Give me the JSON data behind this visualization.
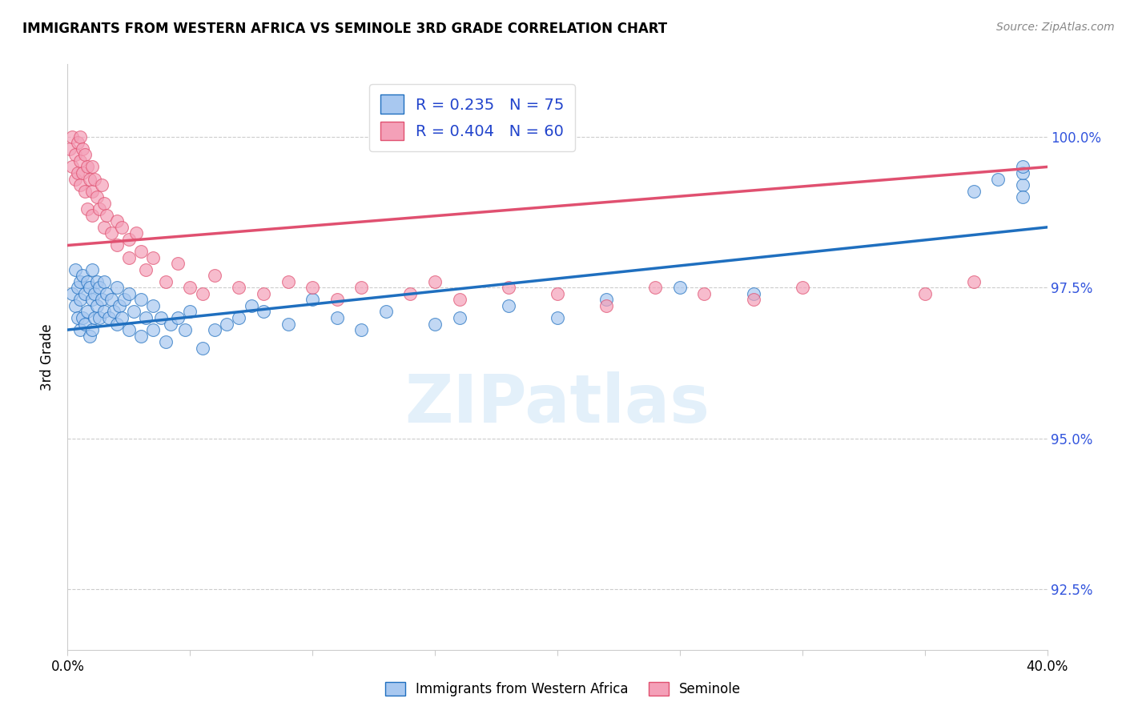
{
  "title": "IMMIGRANTS FROM WESTERN AFRICA VS SEMINOLE 3RD GRADE CORRELATION CHART",
  "source": "Source: ZipAtlas.com",
  "ylabel": "3rd Grade",
  "y_ticks": [
    92.5,
    95.0,
    97.5,
    100.0
  ],
  "y_tick_labels": [
    "92.5%",
    "95.0%",
    "97.5%",
    "100.0%"
  ],
  "xlim": [
    0.0,
    0.4
  ],
  "ylim": [
    91.5,
    101.2
  ],
  "legend_blue_label": "R = 0.235   N = 75",
  "legend_pink_label": "R = 0.404   N = 60",
  "blue_color": "#A8C8F0",
  "pink_color": "#F4A0B8",
  "trendline_blue": "#1F6FBF",
  "trendline_pink": "#E05070",
  "legend_label1": "Immigrants from Western Africa",
  "legend_label2": "Seminole",
  "blue_trendline_x": [
    0.0,
    0.4
  ],
  "blue_trendline_y": [
    96.8,
    98.5
  ],
  "pink_trendline_x": [
    0.0,
    0.4
  ],
  "pink_trendline_y": [
    98.2,
    99.5
  ],
  "blue_scatter_x": [
    0.002,
    0.003,
    0.003,
    0.004,
    0.004,
    0.005,
    0.005,
    0.005,
    0.006,
    0.006,
    0.007,
    0.007,
    0.008,
    0.008,
    0.009,
    0.009,
    0.01,
    0.01,
    0.01,
    0.011,
    0.011,
    0.012,
    0.012,
    0.013,
    0.013,
    0.014,
    0.015,
    0.015,
    0.016,
    0.017,
    0.018,
    0.019,
    0.02,
    0.02,
    0.021,
    0.022,
    0.023,
    0.025,
    0.025,
    0.027,
    0.03,
    0.03,
    0.032,
    0.035,
    0.035,
    0.038,
    0.04,
    0.042,
    0.045,
    0.048,
    0.05,
    0.055,
    0.06,
    0.065,
    0.07,
    0.075,
    0.08,
    0.09,
    0.1,
    0.11,
    0.12,
    0.13,
    0.15,
    0.16,
    0.18,
    0.2,
    0.22,
    0.25,
    0.28,
    0.37,
    0.38,
    0.39,
    0.39,
    0.39,
    0.39
  ],
  "blue_scatter_y": [
    97.4,
    97.2,
    97.8,
    97.5,
    97.0,
    97.6,
    97.3,
    96.8,
    97.7,
    97.0,
    97.4,
    96.9,
    97.6,
    97.1,
    97.5,
    96.7,
    97.8,
    97.3,
    96.8,
    97.4,
    97.0,
    97.6,
    97.2,
    97.5,
    97.0,
    97.3,
    97.6,
    97.1,
    97.4,
    97.0,
    97.3,
    97.1,
    97.5,
    96.9,
    97.2,
    97.0,
    97.3,
    97.4,
    96.8,
    97.1,
    97.3,
    96.7,
    97.0,
    97.2,
    96.8,
    97.0,
    96.6,
    96.9,
    97.0,
    96.8,
    97.1,
    96.5,
    96.8,
    96.9,
    97.0,
    97.2,
    97.1,
    96.9,
    97.3,
    97.0,
    96.8,
    97.1,
    96.9,
    97.0,
    97.2,
    97.0,
    97.3,
    97.5,
    97.4,
    99.1,
    99.3,
    99.2,
    99.4,
    99.0,
    99.5
  ],
  "pink_scatter_x": [
    0.001,
    0.002,
    0.002,
    0.003,
    0.003,
    0.004,
    0.004,
    0.005,
    0.005,
    0.005,
    0.006,
    0.006,
    0.007,
    0.007,
    0.008,
    0.008,
    0.009,
    0.01,
    0.01,
    0.01,
    0.011,
    0.012,
    0.013,
    0.014,
    0.015,
    0.015,
    0.016,
    0.018,
    0.02,
    0.02,
    0.022,
    0.025,
    0.025,
    0.028,
    0.03,
    0.032,
    0.035,
    0.04,
    0.045,
    0.05,
    0.055,
    0.06,
    0.07,
    0.08,
    0.09,
    0.1,
    0.11,
    0.12,
    0.14,
    0.15,
    0.16,
    0.18,
    0.2,
    0.22,
    0.24,
    0.26,
    0.28,
    0.3,
    0.35,
    0.37
  ],
  "pink_scatter_y": [
    99.8,
    100.0,
    99.5,
    99.7,
    99.3,
    99.9,
    99.4,
    99.6,
    99.2,
    100.0,
    99.8,
    99.4,
    99.7,
    99.1,
    99.5,
    98.8,
    99.3,
    99.5,
    99.1,
    98.7,
    99.3,
    99.0,
    98.8,
    99.2,
    98.9,
    98.5,
    98.7,
    98.4,
    98.6,
    98.2,
    98.5,
    98.3,
    98.0,
    98.4,
    98.1,
    97.8,
    98.0,
    97.6,
    97.9,
    97.5,
    97.4,
    97.7,
    97.5,
    97.4,
    97.6,
    97.5,
    97.3,
    97.5,
    97.4,
    97.6,
    97.3,
    97.5,
    97.4,
    97.2,
    97.5,
    97.4,
    97.3,
    97.5,
    97.4,
    97.6
  ]
}
